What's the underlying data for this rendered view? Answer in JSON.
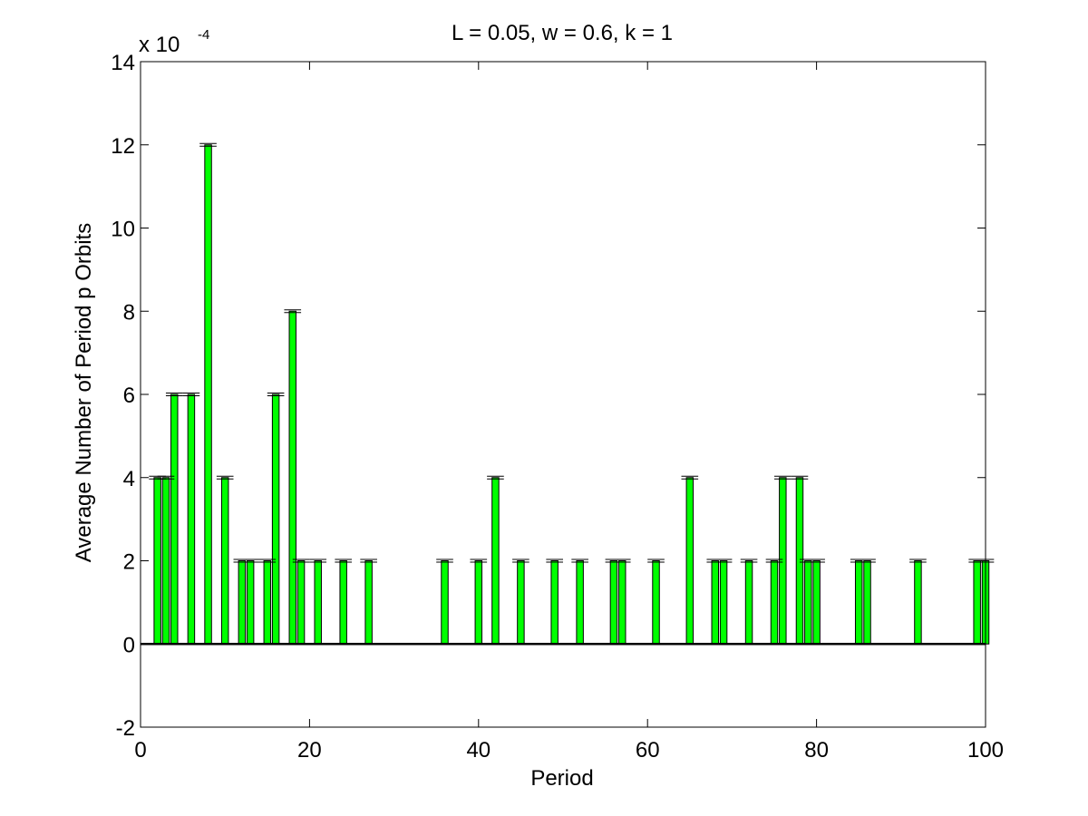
{
  "chart_data": {
    "type": "bar",
    "title": "L = 0.05, w = 0.6, k = 1",
    "xlabel": "Period",
    "ylabel": "Average Number of Period p Orbits",
    "y_scale_base": "x 10",
    "y_scale_exponent": "-4",
    "xlim": [
      0,
      100
    ],
    "ylim": [
      -2,
      14
    ],
    "x_ticks": [
      0,
      20,
      40,
      60,
      80,
      100
    ],
    "y_ticks": [
      -2,
      0,
      2,
      4,
      6,
      8,
      10,
      12,
      14
    ],
    "grid": false,
    "bar_color": "#00ff00",
    "points": [
      {
        "x": 2,
        "y": 4
      },
      {
        "x": 3,
        "y": 4
      },
      {
        "x": 4,
        "y": 6
      },
      {
        "x": 6,
        "y": 6
      },
      {
        "x": 8,
        "y": 12
      },
      {
        "x": 10,
        "y": 4
      },
      {
        "x": 12,
        "y": 2
      },
      {
        "x": 13,
        "y": 2
      },
      {
        "x": 15,
        "y": 2
      },
      {
        "x": 16,
        "y": 6
      },
      {
        "x": 18,
        "y": 8
      },
      {
        "x": 19,
        "y": 2
      },
      {
        "x": 21,
        "y": 2
      },
      {
        "x": 24,
        "y": 2
      },
      {
        "x": 27,
        "y": 2
      },
      {
        "x": 36,
        "y": 2
      },
      {
        "x": 40,
        "y": 2
      },
      {
        "x": 42,
        "y": 4
      },
      {
        "x": 45,
        "y": 2
      },
      {
        "x": 49,
        "y": 2
      },
      {
        "x": 52,
        "y": 2
      },
      {
        "x": 56,
        "y": 2
      },
      {
        "x": 57,
        "y": 2
      },
      {
        "x": 61,
        "y": 2
      },
      {
        "x": 65,
        "y": 4
      },
      {
        "x": 68,
        "y": 2
      },
      {
        "x": 69,
        "y": 2
      },
      {
        "x": 72,
        "y": 2
      },
      {
        "x": 75,
        "y": 2
      },
      {
        "x": 76,
        "y": 4
      },
      {
        "x": 78,
        "y": 4
      },
      {
        "x": 79,
        "y": 2
      },
      {
        "x": 80,
        "y": 2
      },
      {
        "x": 85,
        "y": 2
      },
      {
        "x": 86,
        "y": 2
      },
      {
        "x": 92,
        "y": 2
      },
      {
        "x": 99,
        "y": 2
      },
      {
        "x": 100,
        "y": 2
      }
    ]
  }
}
